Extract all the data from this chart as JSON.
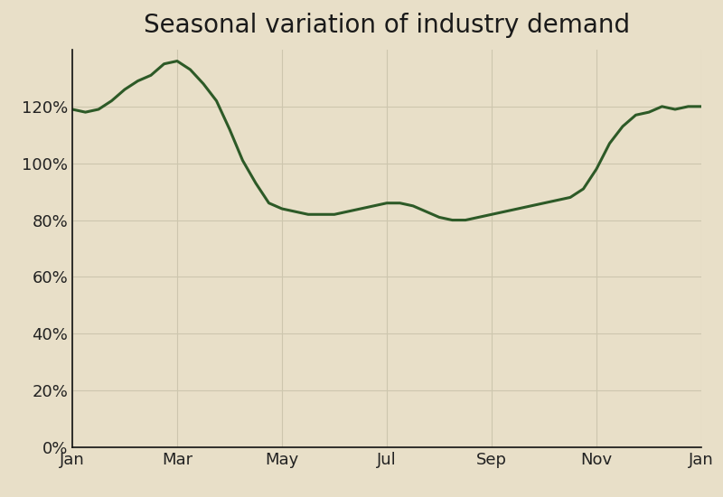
{
  "title": "Seasonal variation of industry demand",
  "background_color": "#e8dfc8",
  "line_color": "#2d5a27",
  "line_width": 2.2,
  "grid_color": "#cdc6ae",
  "x_tick_labels": [
    "Jan",
    "Mar",
    "May",
    "Jul",
    "Sep",
    "Nov",
    "Jan"
  ],
  "x_tick_positions": [
    0,
    2,
    4,
    6,
    8,
    10,
    12
  ],
  "ylim": [
    0,
    140
  ],
  "yticks": [
    0,
    20,
    40,
    60,
    80,
    100,
    120
  ],
  "ytick_labels": [
    "0%",
    "20%",
    "40%",
    "60%",
    "80%",
    "100%",
    "120%"
  ],
  "title_fontsize": 20,
  "tick_fontsize": 13,
  "data_x": [
    0,
    0.25,
    0.5,
    0.75,
    1.0,
    1.25,
    1.5,
    1.75,
    2.0,
    2.25,
    2.5,
    2.75,
    3.0,
    3.25,
    3.5,
    3.75,
    4.0,
    4.25,
    4.5,
    4.75,
    5.0,
    5.25,
    5.5,
    5.75,
    6.0,
    6.25,
    6.5,
    6.75,
    7.0,
    7.25,
    7.5,
    7.75,
    8.0,
    8.25,
    8.5,
    8.75,
    9.0,
    9.25,
    9.5,
    9.75,
    10.0,
    10.25,
    10.5,
    10.75,
    11.0,
    11.25,
    11.5,
    11.75,
    12.0
  ],
  "data_y": [
    119,
    118,
    119,
    122,
    126,
    129,
    131,
    135,
    136,
    133,
    128,
    122,
    112,
    101,
    93,
    86,
    84,
    83,
    82,
    82,
    82,
    83,
    84,
    85,
    86,
    86,
    85,
    83,
    81,
    80,
    80,
    81,
    82,
    83,
    84,
    85,
    86,
    87,
    88,
    91,
    98,
    107,
    113,
    117,
    118,
    120,
    119,
    120,
    120
  ]
}
